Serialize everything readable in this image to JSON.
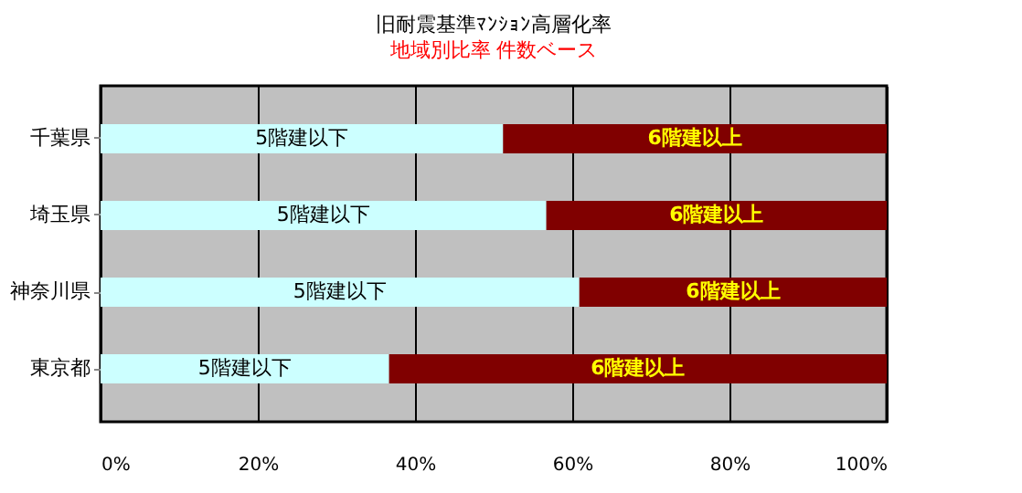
{
  "chart_data": {
    "type": "bar",
    "orientation": "horizontal",
    "stacked": true,
    "title": "旧耐震基準ﾏﾝｼｮﾝ高層化率",
    "subtitle": "地域別比率  件数ベース",
    "categories": [
      "千葉県",
      "埼玉県",
      "神奈川県",
      "東京都"
    ],
    "series": [
      {
        "name": "5階建以下",
        "color": "#ccffff",
        "values": [
          51.2,
          56.7,
          60.9,
          36.7
        ]
      },
      {
        "name": "6階建以上",
        "color": "#800000",
        "values": [
          48.8,
          43.3,
          39.1,
          63.3
        ]
      }
    ],
    "xlim": [
      0,
      100
    ],
    "xticks": [
      {
        "value": 0,
        "label": "0%"
      },
      {
        "value": 20,
        "label": "20%"
      },
      {
        "value": 40,
        "label": "40%"
      },
      {
        "value": 60,
        "label": "60%"
      },
      {
        "value": 80,
        "label": "80%"
      },
      {
        "value": 100,
        "label": "100%"
      }
    ],
    "grid": "x",
    "legend": false
  }
}
